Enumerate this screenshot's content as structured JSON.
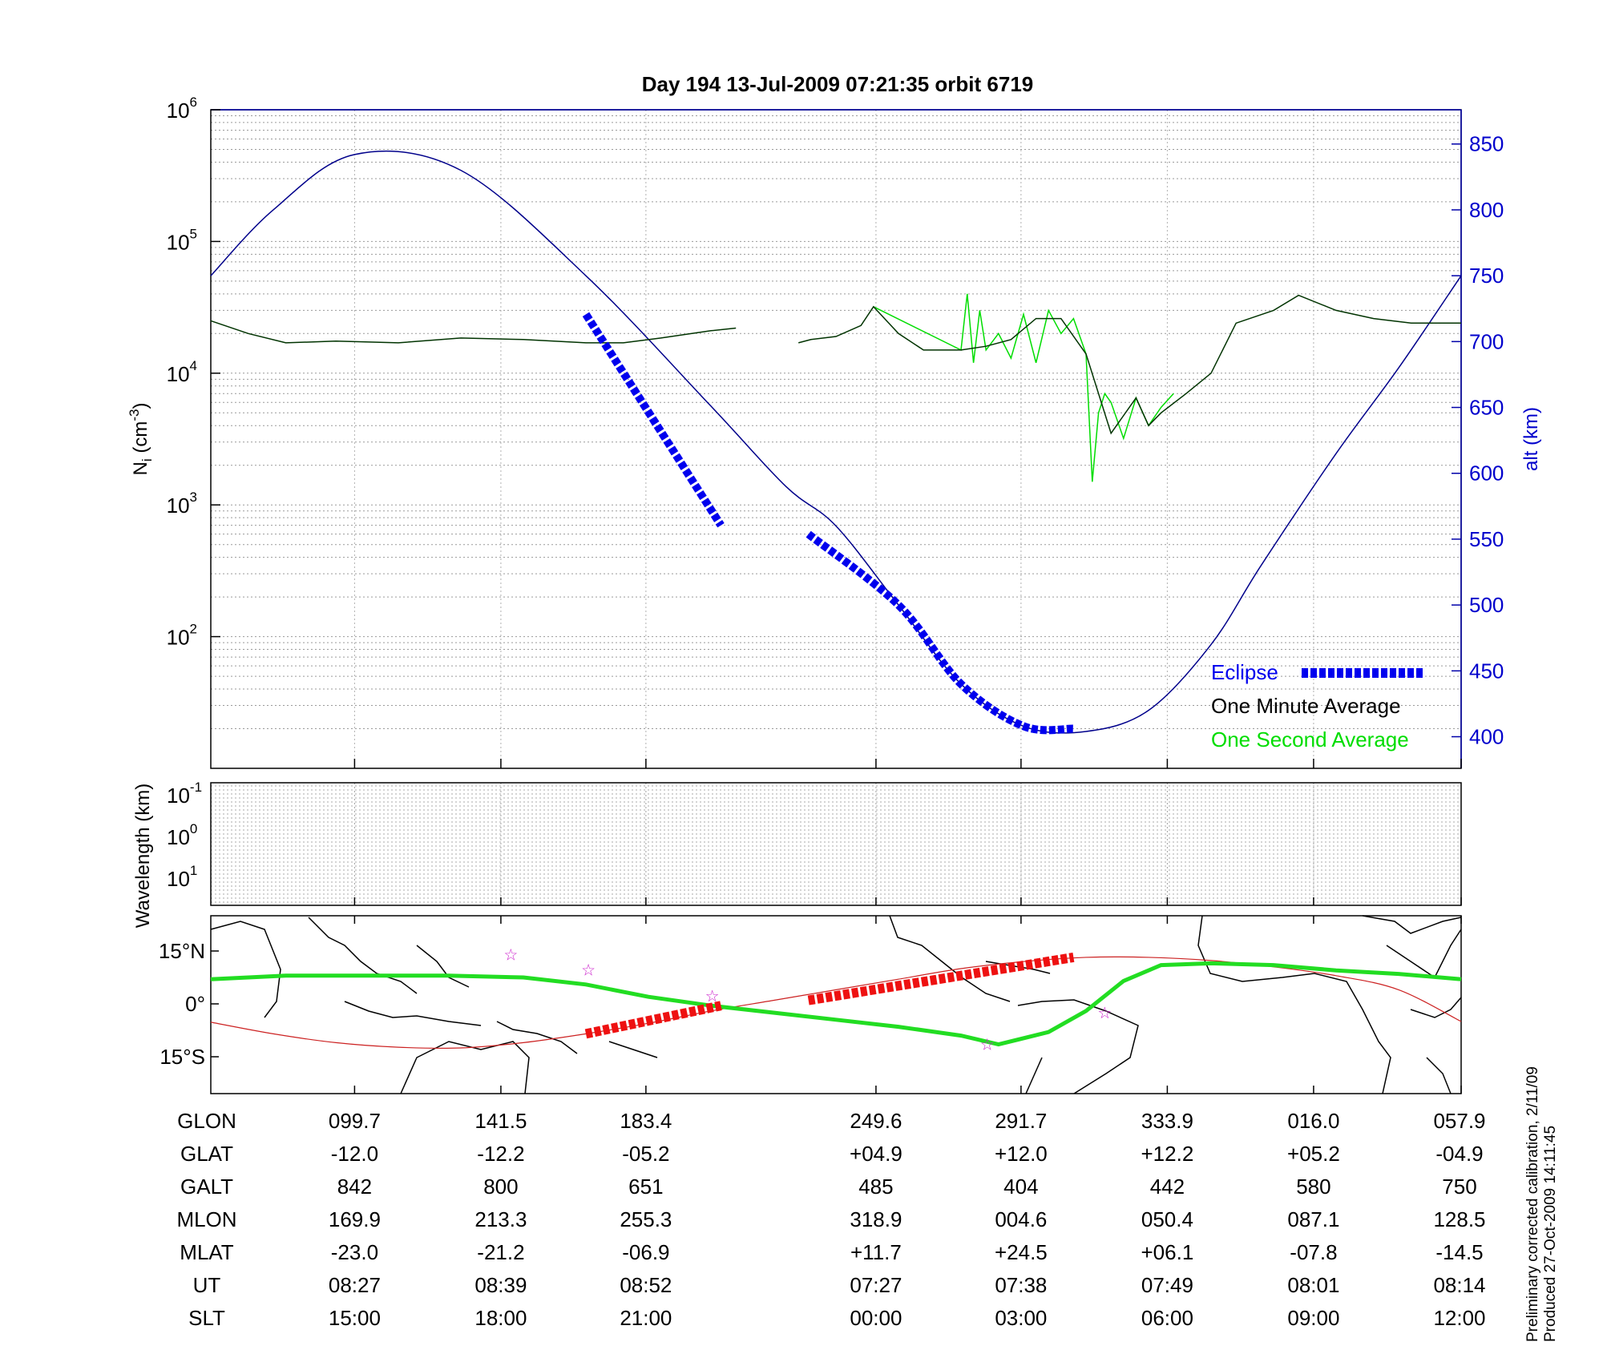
{
  "chart_data": [
    {
      "type": "line",
      "title": "Day 194  13-Jul-2009 07:21:35   orbit 6719",
      "ylabel": "N",
      "ylabel_sub": "i",
      "ylabel_rest": " (cm",
      "ylabel_sup": "-3",
      "ylabel_end": ")",
      "y_scale": "log",
      "ylim": [
        10,
        1000000
      ],
      "yticks": [
        {
          "base": "10",
          "exp": "6"
        },
        {
          "base": "10",
          "exp": "5"
        },
        {
          "base": "10",
          "exp": "4"
        },
        {
          "base": "10",
          "exp": "3"
        },
        {
          "base": "10",
          "exp": "2"
        }
      ],
      "y2label": "alt (km)",
      "y2lim": [
        376,
        876
      ],
      "y2ticks": [
        "850",
        "800",
        "750",
        "700",
        "650",
        "600",
        "550",
        "500",
        "450",
        "400"
      ],
      "grid": true,
      "legend_position": "bottom-right",
      "series": [
        {
          "name": "Eclipse",
          "color": "#0000ee",
          "style": "thick-dashed"
        },
        {
          "name": "One Minute Average",
          "color": "#000000",
          "style": "line"
        },
        {
          "name": "One Second Average",
          "color": "#00dd00",
          "style": "line"
        }
      ],
      "altitude_km": {
        "x": [
          0,
          0.05,
          0.115,
          0.2,
          0.3,
          0.4,
          0.46,
          0.5,
          0.55,
          0.6,
          0.65,
          0.7,
          0.75,
          0.8,
          0.84,
          0.9,
          0.95,
          1.0
        ],
        "y": [
          750,
          800,
          842,
          830,
          750,
          651,
          590,
          560,
          500,
          440,
          408,
          404,
          420,
          470,
          530,
          615,
          680,
          750
        ],
        "color": "#00008b"
      },
      "density_one_minute": {
        "x": [
          0,
          0.03,
          0.06,
          0.1,
          0.15,
          0.2,
          0.25,
          0.3,
          0.33,
          0.36,
          0.4,
          0.42,
          0.45,
          0.47,
          0.48,
          0.5,
          0.52,
          0.53,
          0.55,
          0.57,
          0.6,
          0.62,
          0.64,
          0.66,
          0.68,
          0.7,
          0.72,
          0.74,
          0.75,
          0.76,
          0.78,
          0.8,
          0.82,
          0.85,
          0.87,
          0.9,
          0.93,
          0.96,
          1.0
        ],
        "y": [
          25000,
          20000,
          17000,
          17500,
          17000,
          18500,
          18000,
          17000,
          17000,
          18500,
          21000,
          22000,
          null,
          17000,
          18000,
          19000,
          23000,
          32000,
          20000,
          15000,
          15000,
          16000,
          18000,
          26000,
          26000,
          14000,
          3500,
          6500,
          4000,
          5000,
          7000,
          10000,
          24000,
          30000,
          39000,
          30000,
          26000,
          24000,
          24000
        ],
        "color": "#003300"
      },
      "density_one_second": {
        "x": [
          0.53,
          0.6,
          0.605,
          0.61,
          0.615,
          0.62,
          0.63,
          0.64,
          0.65,
          0.66,
          0.67,
          0.68,
          0.69,
          0.7,
          0.705,
          0.71,
          0.715,
          0.72,
          0.73,
          0.74,
          0.75,
          0.76,
          0.77
        ],
        "y": [
          32000,
          15000,
          40000,
          12000,
          30000,
          15000,
          20000,
          13000,
          28000,
          12000,
          30000,
          20000,
          26000,
          14000,
          1500,
          5000,
          7000,
          6000,
          3200,
          6500,
          4000,
          5500,
          7000
        ],
        "color": "#00dd00"
      },
      "eclipse_segments": [
        {
          "x": [
            0.3,
            0.408
          ],
          "alt_km": [
            745,
            650
          ],
          "density": [
            28000,
            700
          ]
        },
        {
          "x": [
            0.478,
            0.69
          ],
          "density": [
            600,
            20
          ]
        }
      ]
    },
    {
      "type": "line",
      "ylabel": "Wavelength (km)",
      "y_scale": "log",
      "yticks": [
        {
          "base": "10",
          "exp": "-1"
        },
        {
          "base": "10",
          "exp": "0"
        },
        {
          "base": "10",
          "exp": "1"
        }
      ],
      "grid": true,
      "series": []
    },
    {
      "type": "line",
      "yticks": [
        "15°N",
        "0°",
        "15°S"
      ],
      "series": [
        {
          "name": "magnetic equator",
          "color": "#22dd22",
          "x": [
            0,
            0.06,
            0.12,
            0.19,
            0.25,
            0.3,
            0.35,
            0.4,
            0.45,
            0.5,
            0.55,
            0.6,
            0.63,
            0.67,
            0.7,
            0.73,
            0.76,
            0.8,
            0.85,
            0.9,
            0.95,
            1.0
          ],
          "lat": [
            7,
            8,
            8,
            8,
            7.5,
            5.5,
            2,
            -0.5,
            -2.5,
            -4.5,
            -6.5,
            -9,
            -11.5,
            -8,
            -2,
            6.5,
            11,
            11.5,
            11,
            9.5,
            8.5,
            7
          ]
        },
        {
          "name": "orbit track",
          "color": "#cc2222",
          "x": [
            0,
            0.05,
            0.1,
            0.15,
            0.2,
            0.25,
            0.3,
            0.35,
            0.4,
            0.45,
            0.5,
            0.55,
            0.6,
            0.65,
            0.7,
            0.75,
            0.8,
            0.85,
            0.9,
            0.95,
            1.0
          ],
          "lat": [
            -5.2,
            -8.5,
            -11,
            -12.3,
            -12.5,
            -11,
            -8.5,
            -5.5,
            -2,
            1,
            4,
            7,
            10,
            12,
            13.2,
            13.2,
            12.3,
            10.5,
            8,
            4,
            -5
          ]
        },
        {
          "name": "eclipse track",
          "color": "#ee1111",
          "style": "thick-dashed",
          "segments": [
            {
              "x": [
                0.3,
                0.408
              ],
              "lat": [
                -8.5,
                -0.5
              ]
            },
            {
              "x": [
                0.478,
                0.69
              ],
              "lat": [
                1,
                13.2
              ]
            }
          ]
        }
      ],
      "stars": [
        {
          "x": 0.24,
          "lat": 14
        },
        {
          "x": 0.302,
          "lat": 9.7
        },
        {
          "x": 0.401,
          "lat": 2.3
        },
        {
          "x": 0.621,
          "lat": -11.5
        },
        {
          "x": 0.715,
          "lat": -2.5
        }
      ]
    }
  ],
  "table": {
    "headers": [
      "GLON",
      "GLAT",
      "GALT",
      "MLON",
      "MLAT",
      "UT",
      "SLT"
    ],
    "columns": [
      [
        "099.7",
        "-12.0",
        "842",
        "169.9",
        "-23.0",
        "08:27",
        "15:00"
      ],
      [
        "141.5",
        "-12.2",
        "800",
        "213.3",
        "-21.2",
        "08:39",
        "18:00"
      ],
      [
        "183.4",
        "-05.2",
        "651",
        "255.3",
        "-06.9",
        "08:52",
        "21:00"
      ],
      [
        "249.6",
        "+04.9",
        "485",
        "318.9",
        "+11.7",
        "07:27",
        "00:00"
      ],
      [
        "291.7",
        "+12.0",
        "404",
        "004.6",
        "+24.5",
        "07:38",
        "03:00"
      ],
      [
        "333.9",
        "+12.2",
        "442",
        "050.4",
        "+06.1",
        "07:49",
        "06:00"
      ],
      [
        "016.0",
        "+05.2",
        "580",
        "087.1",
        "-07.8",
        "08:01",
        "09:00"
      ],
      [
        "057.9",
        "-04.9",
        "750",
        "128.5",
        "-14.5",
        "08:14",
        "12:00"
      ]
    ]
  },
  "footer": {
    "line1": "Preliminary corrected calibration, 2/11/09",
    "line2": "Produced 27-Oct-2009 14:11:45"
  }
}
